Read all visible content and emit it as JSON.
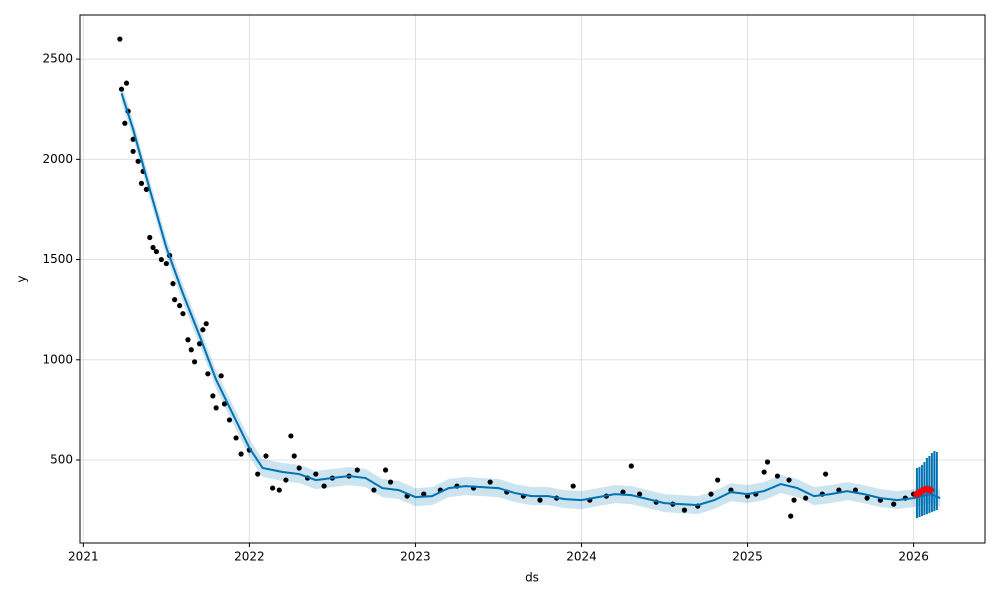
{
  "chart_data": {
    "type": "forecast",
    "xlabel": "ds",
    "ylabel": "y",
    "xlim": [
      2020.98,
      2026.43
    ],
    "ylim": [
      86,
      2720
    ],
    "xticks": [
      2021,
      2022,
      2023,
      2024,
      2025,
      2026
    ],
    "yticks": [
      500,
      1000,
      1500,
      2000,
      2500
    ],
    "grid": true,
    "forecast": {
      "color": "#0072B2",
      "x": [
        2021.23,
        2021.3,
        2021.4,
        2021.5,
        2021.6,
        2021.7,
        2021.8,
        2021.9,
        2022.0,
        2022.08,
        2022.2,
        2022.3,
        2022.4,
        2022.5,
        2022.6,
        2022.7,
        2022.8,
        2022.9,
        2023.0,
        2023.1,
        2023.2,
        2023.3,
        2023.4,
        2023.5,
        2023.6,
        2023.7,
        2023.8,
        2023.9,
        2024.0,
        2024.1,
        2024.2,
        2024.3,
        2024.4,
        2024.5,
        2024.6,
        2024.7,
        2024.8,
        2024.9,
        2025.0,
        2025.1,
        2025.2,
        2025.3,
        2025.4,
        2025.5,
        2025.6,
        2025.7,
        2025.8,
        2025.9,
        2026.0,
        2026.1,
        2026.16
      ],
      "values": [
        2330,
        2150,
        1850,
        1560,
        1330,
        1120,
        900,
        730,
        560,
        460,
        440,
        430,
        400,
        410,
        420,
        410,
        360,
        350,
        315,
        320,
        360,
        370,
        365,
        360,
        335,
        320,
        320,
        305,
        300,
        315,
        330,
        325,
        305,
        285,
        280,
        275,
        300,
        340,
        330,
        345,
        380,
        360,
        320,
        330,
        345,
        330,
        310,
        300,
        310,
        330,
        310
      ],
      "lower": [
        2285,
        2105,
        1805,
        1515,
        1285,
        1075,
        855,
        685,
        515,
        415,
        395,
        385,
        355,
        365,
        375,
        365,
        315,
        305,
        270,
        275,
        315,
        325,
        320,
        315,
        290,
        275,
        275,
        260,
        255,
        270,
        285,
        280,
        260,
        240,
        235,
        230,
        255,
        295,
        285,
        300,
        335,
        315,
        275,
        285,
        300,
        285,
        265,
        255,
        265,
        285,
        265
      ],
      "upper": [
        2375,
        2195,
        1895,
        1605,
        1375,
        1165,
        945,
        775,
        605,
        505,
        485,
        475,
        445,
        455,
        465,
        455,
        405,
        395,
        360,
        365,
        405,
        415,
        410,
        405,
        380,
        365,
        365,
        350,
        345,
        360,
        375,
        370,
        350,
        330,
        325,
        320,
        345,
        385,
        375,
        390,
        425,
        405,
        365,
        375,
        390,
        375,
        355,
        345,
        355,
        375,
        355
      ]
    },
    "observed": {
      "color": "#000000",
      "x": [
        2021.22,
        2021.23,
        2021.25,
        2021.26,
        2021.27,
        2021.3,
        2021.3,
        2021.33,
        2021.35,
        2021.36,
        2021.38,
        2021.4,
        2021.42,
        2021.44,
        2021.47,
        2021.5,
        2021.52,
        2021.54,
        2021.55,
        2021.58,
        2021.6,
        2021.63,
        2021.65,
        2021.67,
        2021.7,
        2021.72,
        2021.74,
        2021.75,
        2021.78,
        2021.8,
        2021.83,
        2021.85,
        2021.88,
        2021.92,
        2021.95,
        2022.0,
        2022.05,
        2022.1,
        2022.14,
        2022.18,
        2022.22,
        2022.25,
        2022.27,
        2022.3,
        2022.35,
        2022.4,
        2022.45,
        2022.5,
        2022.6,
        2022.65,
        2022.75,
        2022.82,
        2022.85,
        2022.95,
        2023.05,
        2023.15,
        2023.25,
        2023.35,
        2023.45,
        2023.55,
        2023.65,
        2023.75,
        2023.85,
        2023.95,
        2024.05,
        2024.15,
        2024.25,
        2024.3,
        2024.35,
        2024.45,
        2024.55,
        2024.62,
        2024.7,
        2024.78,
        2024.82,
        2024.9,
        2025.0,
        2025.05,
        2025.1,
        2025.12,
        2025.18,
        2025.25,
        2025.26,
        2025.28,
        2025.35,
        2025.45,
        2025.47,
        2025.55,
        2025.65,
        2025.72,
        2025.8,
        2025.88,
        2025.95,
        2026.0
      ],
      "values": [
        2600,
        2350,
        2180,
        2380,
        2240,
        2100,
        2040,
        1990,
        1880,
        1940,
        1850,
        1610,
        1560,
        1540,
        1500,
        1480,
        1520,
        1380,
        1300,
        1270,
        1230,
        1100,
        1050,
        990,
        1080,
        1150,
        1180,
        930,
        820,
        760,
        920,
        780,
        700,
        610,
        530,
        550,
        430,
        520,
        360,
        350,
        400,
        620,
        520,
        460,
        410,
        430,
        370,
        410,
        420,
        450,
        350,
        450,
        390,
        320,
        330,
        350,
        370,
        360,
        390,
        340,
        320,
        300,
        310,
        370,
        300,
        320,
        340,
        470,
        330,
        290,
        280,
        250,
        270,
        330,
        400,
        350,
        320,
        330,
        440,
        490,
        420,
        400,
        220,
        300,
        310,
        330,
        430,
        350,
        350,
        310,
        300,
        280,
        310,
        330
      ]
    },
    "recent": {
      "color": "#ff0000",
      "x": [
        2026.02,
        2026.04,
        2026.06,
        2026.08,
        2026.1
      ],
      "values": [
        330,
        340,
        350,
        355,
        350
      ]
    },
    "intervals": {
      "color": "#0072B2",
      "x": [
        2026.02,
        2026.035,
        2026.05,
        2026.065,
        2026.08,
        2026.095,
        2026.11,
        2026.125,
        2026.14
      ],
      "lower": [
        210,
        215,
        220,
        225,
        230,
        235,
        240,
        245,
        250
      ],
      "upper": [
        460,
        465,
        475,
        490,
        510,
        520,
        535,
        545,
        540
      ]
    }
  }
}
